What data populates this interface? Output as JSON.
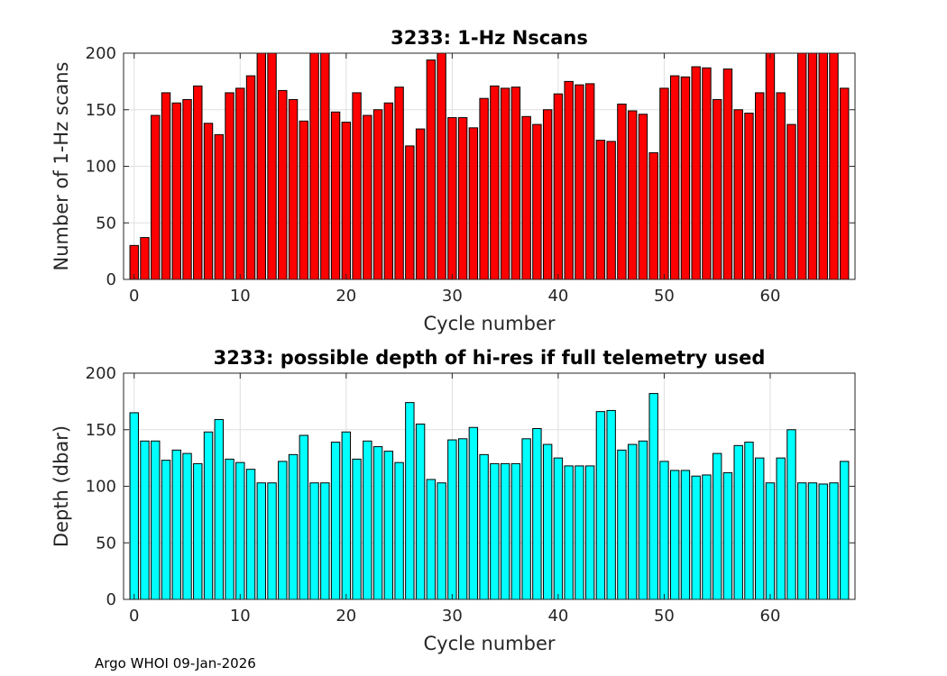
{
  "chart_data": [
    {
      "type": "bar",
      "title": "3233: 1-Hz Nscans",
      "xlabel": "Cycle number",
      "ylabel": "Number of 1-Hz scans",
      "color": "#ff0000",
      "xlim": [
        -1,
        68
      ],
      "ylim": [
        0,
        200
      ],
      "xticks": [
        0,
        10,
        20,
        30,
        40,
        50,
        60
      ],
      "yticks": [
        0,
        50,
        100,
        150,
        200
      ],
      "grid": true,
      "x": [
        0,
        1,
        2,
        3,
        4,
        5,
        6,
        7,
        8,
        9,
        10,
        11,
        12,
        13,
        14,
        15,
        16,
        17,
        18,
        19,
        20,
        21,
        22,
        23,
        24,
        25,
        26,
        27,
        28,
        29,
        30,
        31,
        32,
        33,
        34,
        35,
        36,
        37,
        38,
        39,
        40,
        41,
        42,
        43,
        44,
        45,
        46,
        47,
        48,
        49,
        50,
        51,
        52,
        53,
        54,
        55,
        56,
        57,
        58,
        59,
        60,
        61,
        62,
        63,
        64,
        65,
        66,
        67
      ],
      "values": [
        30,
        37,
        145,
        165,
        156,
        159,
        171,
        138,
        128,
        165,
        169,
        180,
        200,
        200,
        167,
        159,
        140,
        200,
        200,
        148,
        139,
        165,
        145,
        150,
        156,
        170,
        118,
        133,
        194,
        200,
        143,
        143,
        134,
        160,
        171,
        169,
        170,
        144,
        137,
        150,
        164,
        175,
        172,
        173,
        123,
        122,
        155,
        149,
        146,
        112,
        169,
        180,
        179,
        188,
        187,
        159,
        186,
        150,
        147,
        165,
        200,
        165,
        137,
        200,
        200,
        200,
        200,
        169
      ]
    },
    {
      "type": "bar",
      "title": "3233: possible depth of hi-res if full telemetry used",
      "xlabel": "Cycle number",
      "ylabel": "Depth (dbar)",
      "color": "#00ffff",
      "xlim": [
        -1,
        68
      ],
      "ylim": [
        0,
        200
      ],
      "xticks": [
        0,
        10,
        20,
        30,
        40,
        50,
        60
      ],
      "yticks": [
        0,
        50,
        100,
        150,
        200
      ],
      "grid": true,
      "x": [
        0,
        1,
        2,
        3,
        4,
        5,
        6,
        7,
        8,
        9,
        10,
        11,
        12,
        13,
        14,
        15,
        16,
        17,
        18,
        19,
        20,
        21,
        22,
        23,
        24,
        25,
        26,
        27,
        28,
        29,
        30,
        31,
        32,
        33,
        34,
        35,
        36,
        37,
        38,
        39,
        40,
        41,
        42,
        43,
        44,
        45,
        46,
        47,
        48,
        49,
        50,
        51,
        52,
        53,
        54,
        55,
        56,
        57,
        58,
        59,
        60,
        61,
        62,
        63,
        64,
        65,
        66,
        67
      ],
      "values": [
        165,
        140,
        140,
        123,
        132,
        129,
        120,
        148,
        159,
        124,
        121,
        115,
        103,
        103,
        122,
        128,
        145,
        103,
        103,
        139,
        148,
        124,
        140,
        135,
        131,
        121,
        174,
        155,
        106,
        103,
        141,
        142,
        152,
        128,
        120,
        120,
        120,
        142,
        151,
        137,
        125,
        118,
        118,
        118,
        166,
        167,
        132,
        137,
        140,
        182,
        122,
        114,
        114,
        109,
        110,
        129,
        112,
        136,
        139,
        125,
        103,
        125,
        150,
        103,
        103,
        102,
        103,
        122
      ]
    }
  ],
  "footer": "Argo WHOI 09-Jan-2026"
}
